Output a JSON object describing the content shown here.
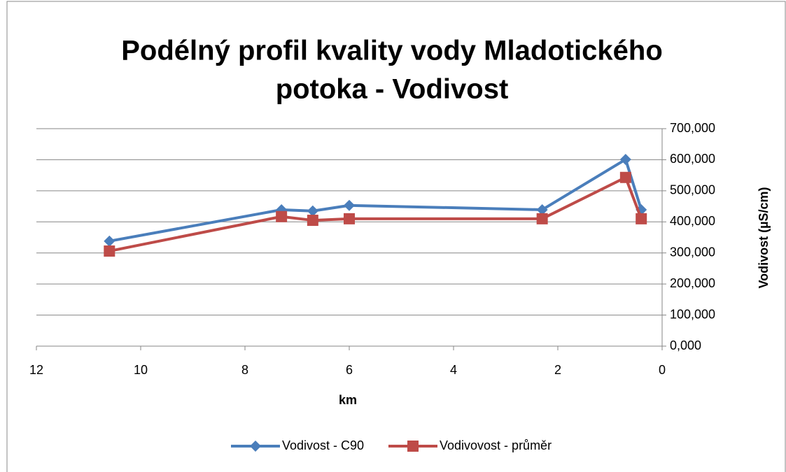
{
  "chart_data": {
    "type": "line",
    "title": [
      "Podélný profil kvality vody Mladotického",
      "potoka - Vodivost"
    ],
    "x_label": "km",
    "y_label": "Vodivost (µS/cm)",
    "x_reversed": true,
    "y_axis_side": "right",
    "xlim": [
      0,
      12
    ],
    "xticks": [
      0,
      2,
      4,
      6,
      8,
      10,
      12
    ],
    "ylim": [
      0,
      700
    ],
    "yticks": [
      {
        "value": 0,
        "label": "0,000"
      },
      {
        "value": 100,
        "label": "100,000"
      },
      {
        "value": 200,
        "label": "200,000"
      },
      {
        "value": 300,
        "label": "300,000"
      },
      {
        "value": 400,
        "label": "400,000"
      },
      {
        "value": 500,
        "label": "500,000"
      },
      {
        "value": 600,
        "label": "600,000"
      },
      {
        "value": 700,
        "label": "700,000"
      }
    ],
    "grid": true,
    "legend": "bottom",
    "x": [
      10.6,
      7.3,
      6.7,
      6.0,
      2.3,
      0.7,
      0.4
    ],
    "series": [
      {
        "name": "Vodivost - C90",
        "color": "#4a7ebb",
        "marker": "diamond",
        "values": [
          338,
          439,
          435,
          453,
          439,
          601,
          439
        ]
      },
      {
        "name": "Vodivovost - průměr",
        "color": "#be4b48",
        "marker": "square",
        "values": [
          306,
          417,
          405,
          410,
          410,
          543,
          410
        ]
      }
    ]
  }
}
